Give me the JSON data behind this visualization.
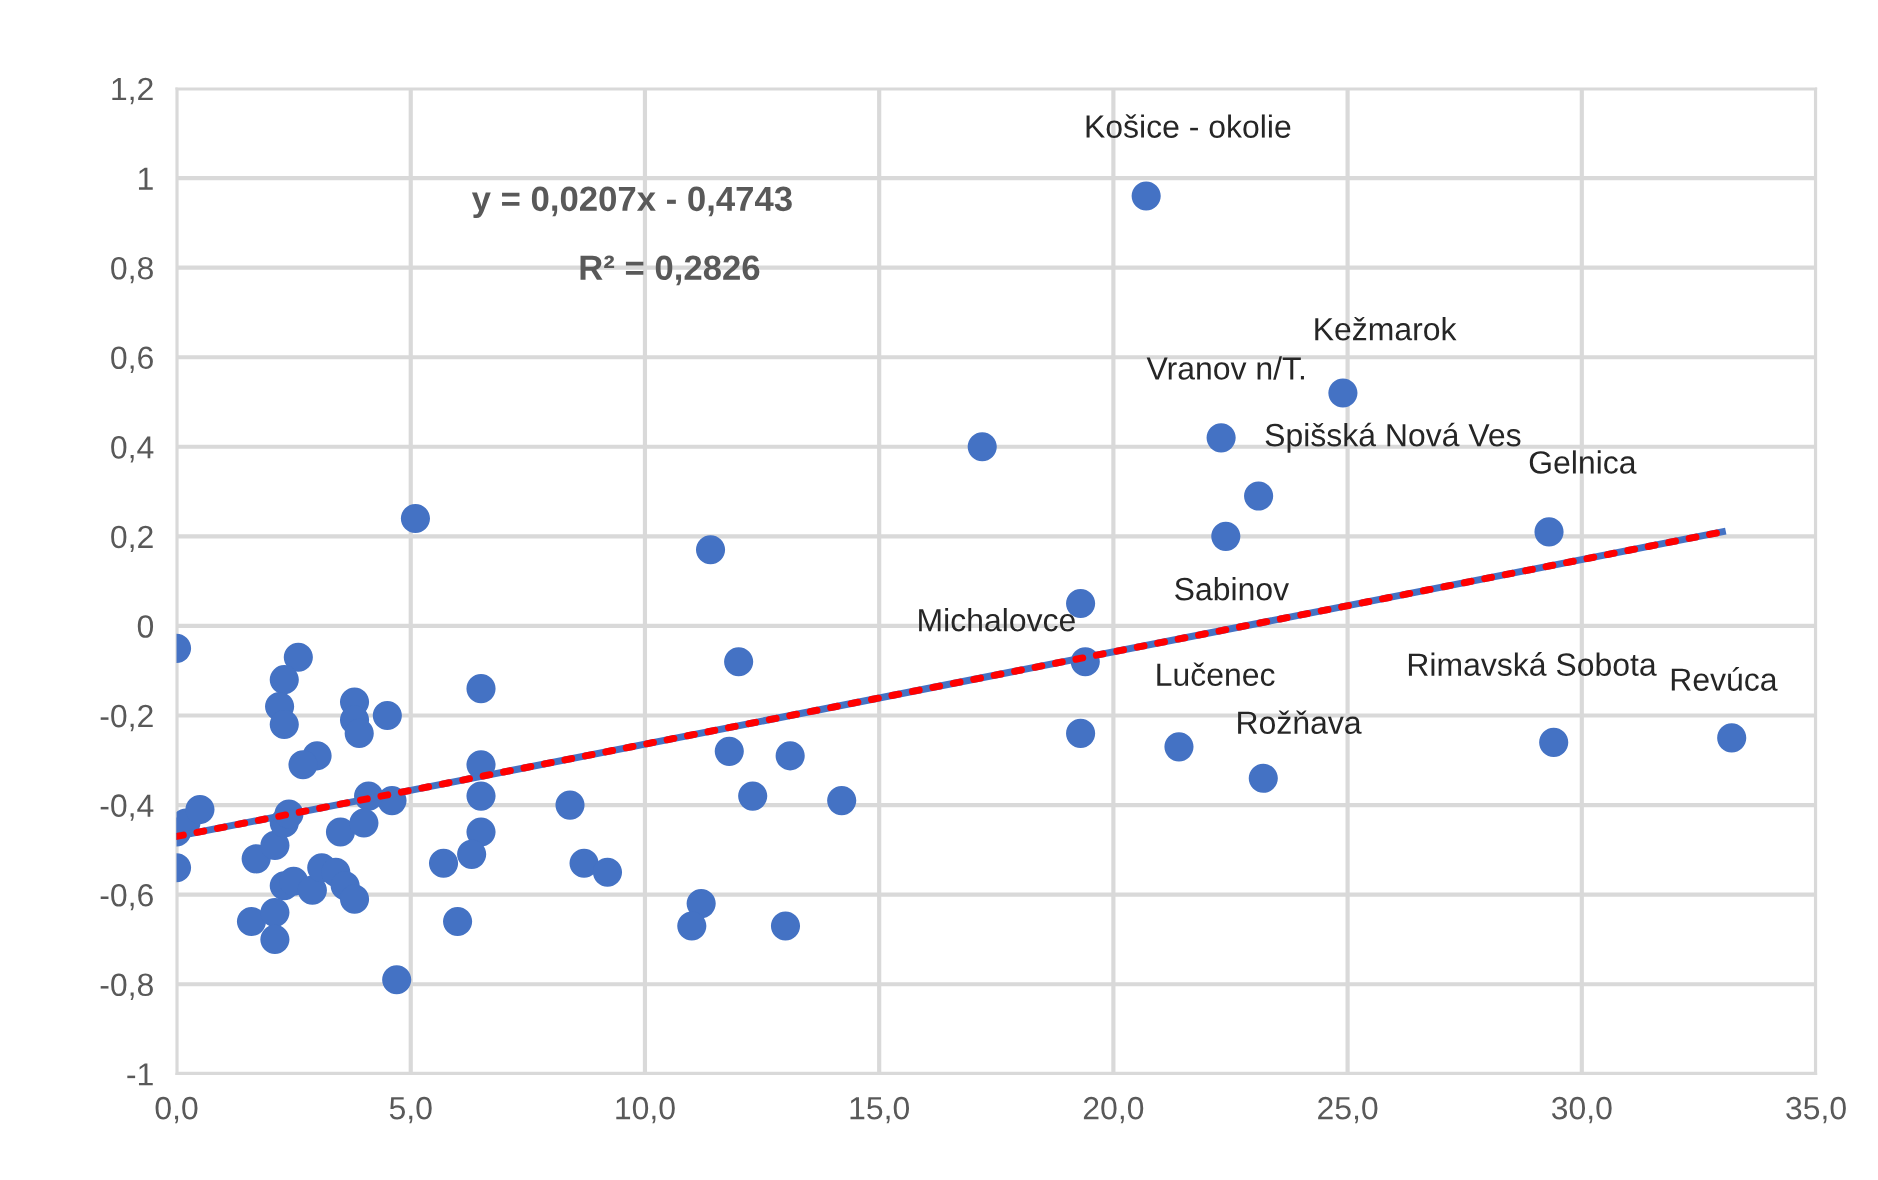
{
  "chart_data": {
    "type": "scatter",
    "series": [
      {
        "color": "#4472c4",
        "marker": "circle",
        "x": [
          20.7,
          24.9,
          22.3,
          23.1,
          22.4,
          29.3,
          19.4,
          19.3,
          19.3,
          21.4,
          23.2,
          29.4,
          33.2,
          17.2,
          5.1,
          11.4,
          12.0,
          6.5,
          4.5,
          11.8,
          13.1,
          6.5,
          6.5,
          4.6,
          12.3,
          14.2,
          8.4,
          6.5,
          6.3,
          5.7,
          8.7,
          9.2,
          11.2,
          11.0,
          6.0,
          13.0,
          4.7,
          0.0,
          2.6,
          2.3,
          2.2,
          2.3,
          3.8,
          3.8,
          3.9,
          3.0,
          2.7,
          0.0,
          0.2,
          0.5,
          0.0,
          1.7,
          2.1,
          2.3,
          2.4,
          4.1,
          3.5,
          4.0,
          2.3,
          2.5,
          2.9,
          3.1,
          3.4,
          3.6,
          3.8,
          1.6,
          2.1,
          2.1
        ],
        "values": [
          0.96,
          0.52,
          0.42,
          0.29,
          0.2,
          0.21,
          -0.08,
          0.05,
          -0.24,
          -0.27,
          -0.34,
          -0.26,
          -0.25,
          0.4,
          0.24,
          0.17,
          -0.08,
          -0.14,
          -0.2,
          -0.28,
          -0.29,
          -0.31,
          -0.38,
          -0.39,
          -0.38,
          -0.39,
          -0.4,
          -0.46,
          -0.51,
          -0.53,
          -0.53,
          -0.55,
          -0.62,
          -0.67,
          -0.66,
          -0.67,
          -0.79,
          -0.05,
          -0.07,
          -0.12,
          -0.18,
          -0.22,
          -0.17,
          -0.21,
          -0.24,
          -0.29,
          -0.31,
          -0.46,
          -0.44,
          -0.41,
          -0.54,
          -0.52,
          -0.49,
          -0.44,
          -0.42,
          -0.38,
          -0.46,
          -0.44,
          -0.58,
          -0.57,
          -0.59,
          -0.54,
          -0.55,
          -0.58,
          -0.61,
          -0.66,
          -0.64,
          -0.7
        ]
      },
      {
        "type": "line",
        "color": "#4472c4",
        "line_style": "solid",
        "marker": "none",
        "x": [
          0,
          33
        ],
        "values": [
          -0.47,
          0.21
        ]
      },
      {
        "type": "line",
        "color": "#ff0000",
        "line_style": "dotted",
        "marker": "none",
        "x": [
          0,
          33
        ],
        "values": [
          -0.47,
          0.21
        ]
      }
    ],
    "annotations": [
      {
        "text": "Košice - okolie",
        "x": 20.7,
        "y": 0.96
      },
      {
        "text": "Kežmarok",
        "x": 24.9,
        "y": 0.52
      },
      {
        "text": "Vranov n/T.",
        "x": 22.3,
        "y": 0.42
      },
      {
        "text": "Spišská Nová Ves",
        "x": 23.1,
        "y": 0.29
      },
      {
        "text": "Sabinov",
        "x": 22.4,
        "y": 0.2
      },
      {
        "text": "Gelnica",
        "x": 29.3,
        "y": 0.21
      },
      {
        "text": "Michalovce",
        "x": 19.4,
        "y": -0.08
      },
      {
        "text": "Lučenec",
        "x": 21.4,
        "y": -0.27
      },
      {
        "text": "Rožňava",
        "x": 23.2,
        "y": -0.34
      },
      {
        "text": "Rimavská Sobota",
        "x": 29.4,
        "y": -0.26
      },
      {
        "text": "Revúca",
        "x": 33.2,
        "y": -0.25
      },
      "y = 0,0207x - 0,4743",
      "R² = 0,2826"
    ],
    "xlim": [
      0,
      35
    ],
    "xticks": [
      {
        "value": 0,
        "label": "0,0"
      },
      {
        "value": 5,
        "label": "5,0"
      },
      {
        "value": 10,
        "label": "10,0"
      },
      {
        "value": 15,
        "label": "15,0"
      },
      {
        "value": 20,
        "label": "20,0"
      },
      {
        "value": 25,
        "label": "25,0"
      },
      {
        "value": 30,
        "label": "30,0"
      },
      {
        "value": 35,
        "label": "35,0"
      }
    ],
    "ylim": [
      -1,
      1.2
    ],
    "yticks": [
      {
        "value": -1,
        "label": "-1"
      },
      {
        "value": -0.8,
        "label": "-0,8"
      },
      {
        "value": -0.6,
        "label": "-0,6"
      },
      {
        "value": -0.4,
        "label": "-0,4"
      },
      {
        "value": -0.2,
        "label": "-0,2"
      },
      0,
      {
        "value": 0.2,
        "label": "0,2"
      },
      {
        "value": 0.4,
        "label": "0,4"
      },
      {
        "value": 0.6,
        "label": "0,6"
      },
      {
        "value": 0.8,
        "label": "0,8"
      },
      1,
      {
        "value": 1.2,
        "label": "1,2"
      }
    ],
    "grid": true,
    "legend": false
  }
}
